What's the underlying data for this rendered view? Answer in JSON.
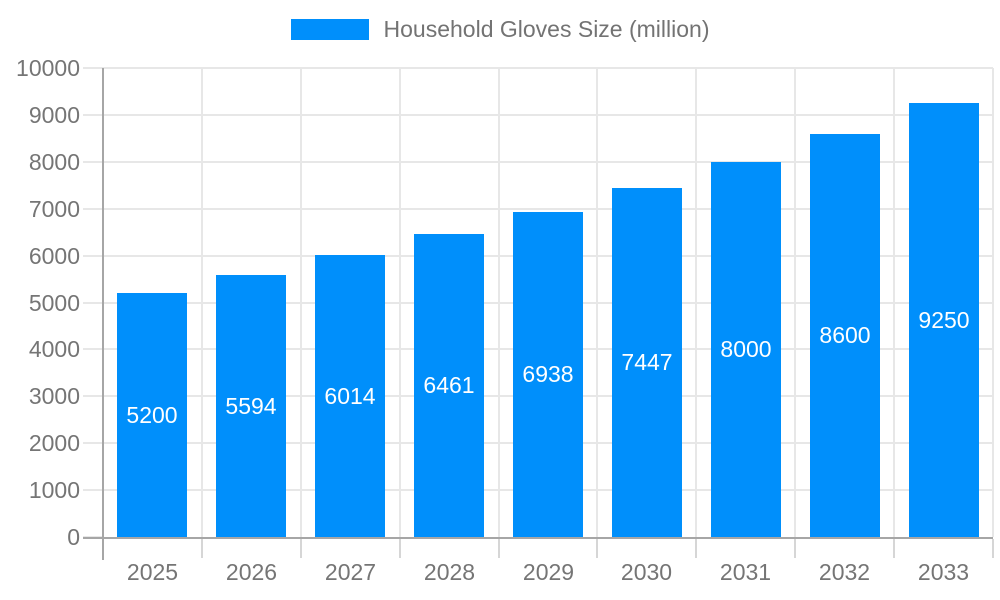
{
  "legend": {
    "label": "Household Gloves Size (million)"
  },
  "colors": {
    "bar": "#008FFB",
    "grid": "#e7e7e7",
    "axis": "#a6a6a6",
    "tick_x": "#d6d6d6",
    "axis_text": "#757575",
    "legend_text": "#737373",
    "value_text": "#ffffff",
    "background": "#ffffff"
  },
  "chart_data": {
    "type": "bar",
    "title": "Household Gloves Size (million)",
    "series_name": "Household Gloves Size (million)",
    "categories": [
      "2025",
      "2026",
      "2027",
      "2028",
      "2029",
      "2030",
      "2031",
      "2032",
      "2033"
    ],
    "values": [
      5200,
      5594,
      6014,
      6461,
      6938,
      7447,
      8000,
      8600,
      9250
    ],
    "value_labels": [
      "5200",
      "5594",
      "6014",
      "6461",
      "6938",
      "7447",
      "8000",
      "8600",
      "9250"
    ],
    "xlabel": "",
    "ylabel": "",
    "ylim": [
      0,
      10000
    ],
    "y_ticks": [
      0,
      1000,
      2000,
      3000,
      4000,
      5000,
      6000,
      7000,
      8000,
      9000,
      10000
    ],
    "y_tick_labels": [
      "0",
      "1000",
      "2000",
      "3000",
      "4000",
      "5000",
      "6000",
      "7000",
      "8000",
      "9000",
      "10000"
    ],
    "grid": true,
    "legend_position": "top-center",
    "value_label_position": "center-of-bar"
  }
}
